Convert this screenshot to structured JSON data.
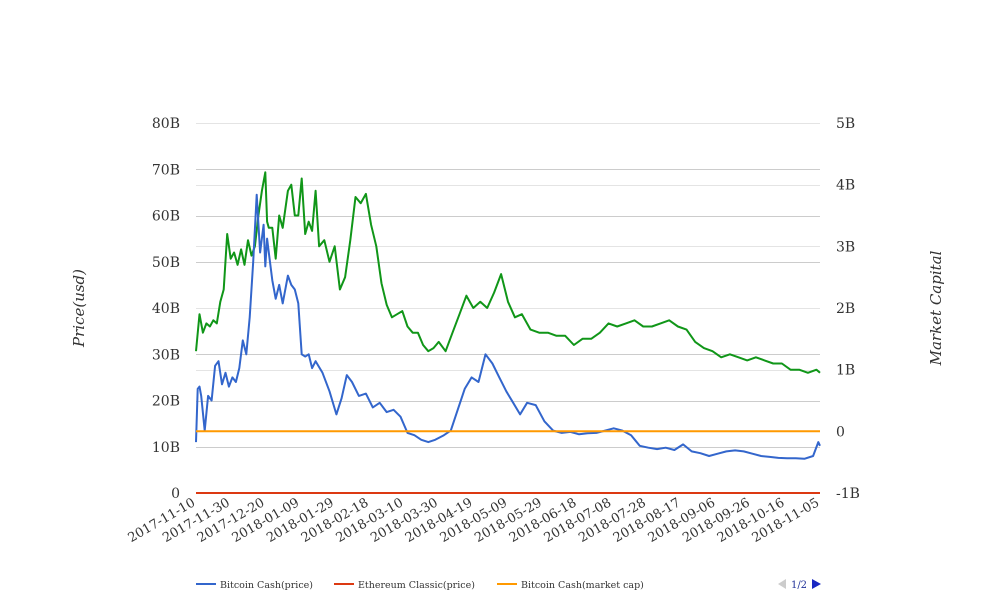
{
  "chart_data": {
    "type": "line",
    "title": "",
    "ylabel": "Price(usd)",
    "y2label": "Market Capital",
    "ylim": [
      0,
      80000000000
    ],
    "y2lim": [
      -1000000000,
      5000000000
    ],
    "yticks": [
      "0",
      "10B",
      "20B",
      "30B",
      "40B",
      "50B",
      "60B",
      "70B",
      "80B"
    ],
    "y2ticks": [
      "-1B",
      "0",
      "1B",
      "2B",
      "3B",
      "4B",
      "5B"
    ],
    "x_start": "2017-11-10",
    "xlim": [
      "2017-11-10",
      "2018-11-05"
    ],
    "xticks": [
      "2017-11-10",
      "2017-11-30",
      "2017-12-20",
      "2018-01-09",
      "2018-01-29",
      "2018-02-18",
      "2018-03-10",
      "2018-03-30",
      "2018-04-19",
      "2018-05-09",
      "2018-05-29",
      "2018-06-18",
      "2018-07-08",
      "2018-07-28",
      "2018-08-17",
      "2018-09-06",
      "2018-09-26",
      "2018-10-16",
      "2018-11-05"
    ],
    "grid": true,
    "legend": {
      "position": "bottom",
      "items": [
        {
          "name": "Bitcoin Cash(price)",
          "color": "#3366cc"
        },
        {
          "name": "Ethereum Classic(price)",
          "color": "#dc3912"
        },
        {
          "name": "Bitcoin Cash(market cap)",
          "color": "#ff9900"
        }
      ],
      "page": "1/2"
    },
    "series": [
      {
        "name": "Bitcoin Cash(price)",
        "axis": "left",
        "color": "#3366cc",
        "x": [
          "2017-11-10",
          "2017-11-11",
          "2017-11-12",
          "2017-11-13",
          "2017-11-15",
          "2017-11-17",
          "2017-11-19",
          "2017-11-21",
          "2017-11-23",
          "2017-11-25",
          "2017-11-27",
          "2017-11-29",
          "2017-12-01",
          "2017-12-03",
          "2017-12-05",
          "2017-12-07",
          "2017-12-09",
          "2017-12-11",
          "2017-12-13",
          "2017-12-15",
          "2017-12-17",
          "2017-12-19",
          "2017-12-20",
          "2017-12-21",
          "2017-12-22",
          "2017-12-24",
          "2017-12-26",
          "2017-12-28",
          "2017-12-30",
          "2018-01-02",
          "2018-01-04",
          "2018-01-06",
          "2018-01-08",
          "2018-01-10",
          "2018-01-12",
          "2018-01-14",
          "2018-01-16",
          "2018-01-18",
          "2018-01-22",
          "2018-01-26",
          "2018-01-30",
          "2018-02-02",
          "2018-02-05",
          "2018-02-08",
          "2018-02-12",
          "2018-02-16",
          "2018-02-20",
          "2018-02-24",
          "2018-02-28",
          "2018-03-04",
          "2018-03-08",
          "2018-03-12",
          "2018-03-16",
          "2018-03-20",
          "2018-03-24",
          "2018-03-28",
          "2018-04-02",
          "2018-04-06",
          "2018-04-10",
          "2018-04-14",
          "2018-04-18",
          "2018-04-22",
          "2018-04-26",
          "2018-04-30",
          "2018-05-04",
          "2018-05-08",
          "2018-05-12",
          "2018-05-16",
          "2018-05-20",
          "2018-05-25",
          "2018-05-30",
          "2018-06-04",
          "2018-06-09",
          "2018-06-14",
          "2018-06-19",
          "2018-06-24",
          "2018-06-29",
          "2018-07-04",
          "2018-07-09",
          "2018-07-14",
          "2018-07-19",
          "2018-07-24",
          "2018-07-29",
          "2018-08-03",
          "2018-08-08",
          "2018-08-13",
          "2018-08-18",
          "2018-08-23",
          "2018-08-28",
          "2018-09-02",
          "2018-09-07",
          "2018-09-12",
          "2018-09-17",
          "2018-09-22",
          "2018-09-27",
          "2018-10-02",
          "2018-10-07",
          "2018-10-12",
          "2018-10-17",
          "2018-10-22",
          "2018-10-27",
          "2018-11-01",
          "2018-11-04",
          "2018-11-05"
        ],
        "values": [
          11000000000,
          22500000000,
          23000000000,
          21000000000,
          13500000000,
          21000000000,
          20000000000,
          27500000000,
          28500000000,
          23500000000,
          26000000000,
          23000000000,
          25000000000,
          24000000000,
          27000000000,
          33000000000,
          30000000000,
          38000000000,
          50000000000,
          64500000000,
          52000000000,
          58000000000,
          49000000000,
          55000000000,
          52000000000,
          46000000000,
          42000000000,
          45000000000,
          41000000000,
          47000000000,
          45000000000,
          44000000000,
          41000000000,
          30000000000,
          29500000000,
          30000000000,
          27000000000,
          28500000000,
          26000000000,
          22000000000,
          17000000000,
          20500000000,
          25500000000,
          24000000000,
          21000000000,
          21500000000,
          18500000000,
          19500000000,
          17500000000,
          18000000000,
          16500000000,
          13000000000,
          12500000000,
          11500000000,
          11000000000,
          11500000000,
          12500000000,
          13500000000,
          18000000000,
          22500000000,
          25000000000,
          24000000000,
          30000000000,
          28000000000,
          25000000000,
          22000000000,
          19500000000,
          17000000000,
          19500000000,
          19000000000,
          15500000000,
          13500000000,
          13000000000,
          13200000000,
          12700000000,
          12900000000,
          13000000000,
          13500000000,
          14000000000,
          13500000000,
          12500000000,
          10200000000,
          9800000000,
          9500000000,
          9800000000,
          9300000000,
          10500000000,
          9000000000,
          8600000000,
          8000000000,
          8500000000,
          9000000000,
          9200000000,
          9000000000,
          8500000000,
          8000000000,
          7800000000,
          7600000000,
          7500000000,
          7500000000,
          7400000000,
          8000000000,
          11000000000,
          10200000000
        ]
      },
      {
        "name": "Ethereum Classic(price)",
        "axis": "left",
        "color": "#dc3912",
        "x": [
          "2017-11-10",
          "2018-11-05"
        ],
        "values": [
          0,
          0
        ]
      },
      {
        "name": "Bitcoin Cash(market cap)",
        "axis": "right",
        "color": "#ff9900",
        "x": [
          "2017-11-10",
          "2018-11-05"
        ],
        "values": [
          0,
          0
        ]
      },
      {
        "name": "",
        "axis": "right",
        "color": "#109618",
        "x": [
          "2017-11-10",
          "2017-11-12",
          "2017-11-14",
          "2017-11-16",
          "2017-11-18",
          "2017-11-20",
          "2017-11-22",
          "2017-11-24",
          "2017-11-26",
          "2017-11-28",
          "2017-11-30",
          "2017-12-02",
          "2017-12-04",
          "2017-12-06",
          "2017-12-08",
          "2017-12-10",
          "2017-12-12",
          "2017-12-14",
          "2017-12-16",
          "2017-12-18",
          "2017-12-20",
          "2017-12-21",
          "2017-12-22",
          "2017-12-24",
          "2017-12-26",
          "2017-12-28",
          "2017-12-30",
          "2018-01-02",
          "2018-01-04",
          "2018-01-06",
          "2018-01-08",
          "2018-01-10",
          "2018-01-12",
          "2018-01-14",
          "2018-01-16",
          "2018-01-18",
          "2018-01-20",
          "2018-01-23",
          "2018-01-26",
          "2018-01-29",
          "2018-02-01",
          "2018-02-04",
          "2018-02-07",
          "2018-02-10",
          "2018-02-13",
          "2018-02-16",
          "2018-02-19",
          "2018-02-22",
          "2018-02-25",
          "2018-02-28",
          "2018-03-03",
          "2018-03-06",
          "2018-03-09",
          "2018-03-12",
          "2018-03-15",
          "2018-03-18",
          "2018-03-21",
          "2018-03-24",
          "2018-03-27",
          "2018-03-30",
          "2018-04-03",
          "2018-04-07",
          "2018-04-11",
          "2018-04-15",
          "2018-04-19",
          "2018-04-23",
          "2018-04-27",
          "2018-05-01",
          "2018-05-05",
          "2018-05-09",
          "2018-05-13",
          "2018-05-17",
          "2018-05-22",
          "2018-05-27",
          "2018-06-01",
          "2018-06-06",
          "2018-06-11",
          "2018-06-16",
          "2018-06-21",
          "2018-06-26",
          "2018-07-01",
          "2018-07-06",
          "2018-07-11",
          "2018-07-16",
          "2018-07-21",
          "2018-07-26",
          "2018-07-31",
          "2018-08-05",
          "2018-08-10",
          "2018-08-15",
          "2018-08-20",
          "2018-08-25",
          "2018-08-30",
          "2018-09-04",
          "2018-09-09",
          "2018-09-14",
          "2018-09-19",
          "2018-09-24",
          "2018-09-29",
          "2018-10-04",
          "2018-10-09",
          "2018-10-14",
          "2018-10-19",
          "2018-10-24",
          "2018-10-29",
          "2018-11-03",
          "2018-11-05"
        ],
        "values": [
          1300000000,
          1900000000,
          1600000000,
          1750000000,
          1700000000,
          1800000000,
          1750000000,
          2100000000,
          2300000000,
          3200000000,
          2800000000,
          2900000000,
          2700000000,
          2950000000,
          2700000000,
          3100000000,
          2850000000,
          3000000000,
          3500000000,
          3900000000,
          4200000000,
          3400000000,
          3300000000,
          3300000000,
          2800000000,
          3500000000,
          3300000000,
          3900000000,
          4000000000,
          3500000000,
          3500000000,
          4100000000,
          3200000000,
          3400000000,
          3250000000,
          3900000000,
          3000000000,
          3100000000,
          2750000000,
          3000000000,
          2300000000,
          2500000000,
          3100000000,
          3800000000,
          3700000000,
          3850000000,
          3350000000,
          3000000000,
          2400000000,
          2050000000,
          1850000000,
          1900000000,
          1950000000,
          1700000000,
          1600000000,
          1600000000,
          1400000000,
          1300000000,
          1350000000,
          1450000000,
          1300000000,
          1600000000,
          1900000000,
          2200000000,
          2000000000,
          2100000000,
          2000000000,
          2250000000,
          2550000000,
          2100000000,
          1850000000,
          1900000000,
          1650000000,
          1600000000,
          1600000000,
          1550000000,
          1550000000,
          1400000000,
          1500000000,
          1500000000,
          1600000000,
          1750000000,
          1700000000,
          1750000000,
          1800000000,
          1700000000,
          1700000000,
          1750000000,
          1800000000,
          1700000000,
          1650000000,
          1450000000,
          1350000000,
          1300000000,
          1200000000,
          1250000000,
          1200000000,
          1150000000,
          1200000000,
          1150000000,
          1100000000,
          1100000000,
          1000000000,
          1000000000,
          950000000,
          1000000000,
          950000000
        ]
      }
    ]
  }
}
